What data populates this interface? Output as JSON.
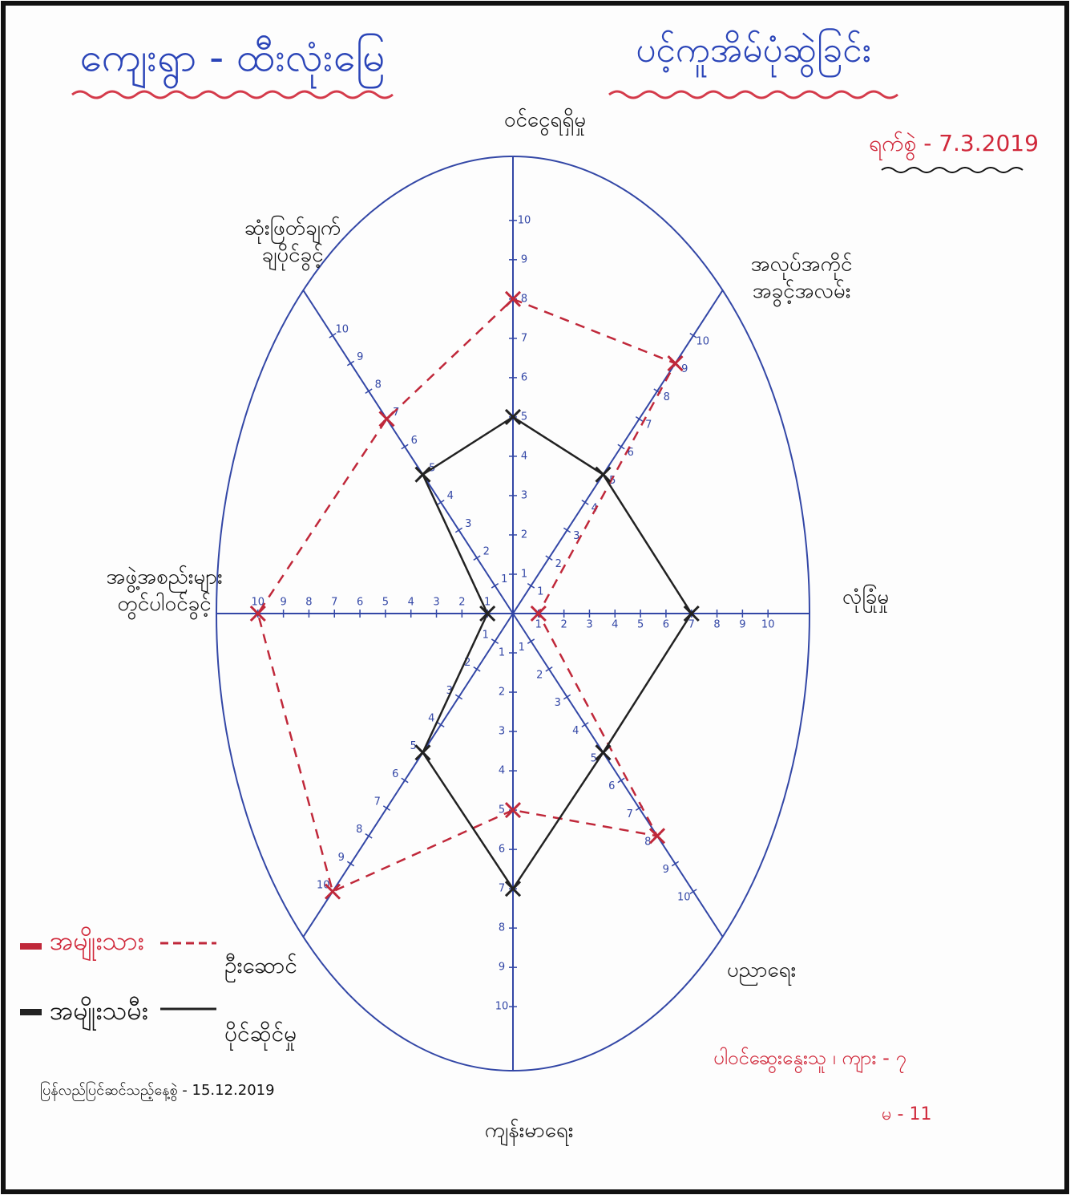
{
  "chart_data": {
    "type": "radar",
    "title": "ကျေးရွာ - ထီးလုံးမြေ",
    "subtitle": "ပင့်ကူအိမ်ပုံဆွဲခြင်း",
    "date": "ရက်စွဲ - 7.3.2019",
    "categories": [
      "ဝင်ငွေရရှိမှု",
      "အလုပ်အကိုင် အခွင့်အလမ်း",
      "လုံခြုံမှု",
      "ပညာရေး",
      "ကျန်းမာရေး",
      null,
      "အဖွဲ့အစည်းများ တွင်ပါဝင်ခွင့်",
      "ဆုံးဖြတ်ချက် ချပိုင်ခွင့်"
    ],
    "rlim": [
      0,
      10
    ],
    "rticks": [
      1,
      2,
      3,
      4,
      5,
      6,
      7,
      8,
      9,
      10
    ],
    "axis_color": "#3347a6",
    "series": [
      {
        "name": "အမျိုးသား",
        "note": "ဦးဆောင်",
        "color": "#c0283a",
        "dashed": true,
        "values": [
          8,
          9,
          1,
          8,
          5,
          10,
          10,
          7
        ]
      },
      {
        "name": "အမျိုးသမီး",
        "note": "ပိုင်ဆိုင်မှု",
        "color": "#222222",
        "dashed": false,
        "values": [
          5,
          5,
          7,
          5,
          7,
          5,
          1,
          5
        ]
      }
    ],
    "revised": "ပြန်လည်ပြင်ဆင်သည့်နေ့စွဲ - 15.12.2019",
    "participants": [
      "ပါဝင်ဆွေးနွေးသူ ၊ ကျား - ၇",
      "မ - 11"
    ]
  }
}
